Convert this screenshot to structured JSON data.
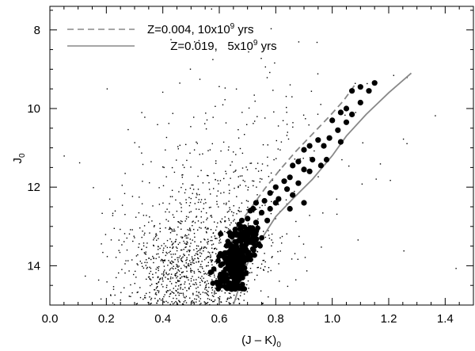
{
  "chart_data": {
    "type": "scatter",
    "title": "",
    "xlabel": "(J – K)",
    "xlabel_sub": "0",
    "ylabel": "J",
    "ylabel_sub": "0",
    "xlim": [
      0.0,
      1.5
    ],
    "ylim": [
      15.0,
      7.4
    ],
    "y_inverted": true,
    "grid": false,
    "xticks": [
      0.0,
      0.2,
      0.4,
      0.6,
      0.8,
      1.0,
      1.2,
      1.4
    ],
    "xtick_labels": [
      "0.0",
      "0.2",
      "0.4",
      "0.6",
      "0.8",
      "1.0",
      "1.2",
      "1.4"
    ],
    "yticks": [
      8,
      10,
      12,
      14
    ],
    "ytick_labels": [
      "8",
      "10",
      "12",
      "14"
    ],
    "legend_position": "top-left",
    "legend": [
      {
        "pre": "Z=0.004,  10x10",
        "sup": "9",
        "post": " yrs",
        "style": "dashed",
        "color": "#888888"
      },
      {
        "pre": "Z=0.019,   5x10",
        "sup": "9",
        "post": " yrs",
        "style": "solid",
        "color": "#888888"
      }
    ],
    "isochrones": [
      {
        "style": "dashed",
        "color": "#888888",
        "points": [
          [
            0.6,
            14.45
          ],
          [
            0.62,
            14.05
          ],
          [
            0.63,
            13.65
          ],
          [
            0.65,
            13.25
          ],
          [
            0.68,
            12.85
          ],
          [
            0.72,
            12.45
          ],
          [
            0.76,
            12.05
          ],
          [
            0.81,
            11.6
          ],
          [
            0.87,
            11.1
          ],
          [
            0.93,
            10.65
          ],
          [
            0.99,
            10.2
          ],
          [
            1.04,
            9.8
          ],
          [
            1.08,
            9.4
          ]
        ]
      },
      {
        "style": "solid",
        "color": "#888888",
        "points": [
          [
            0.65,
            15.0
          ],
          [
            0.67,
            14.55
          ],
          [
            0.69,
            14.1
          ],
          [
            0.72,
            13.65
          ],
          [
            0.76,
            13.2
          ],
          [
            0.8,
            12.75
          ],
          [
            0.86,
            12.3
          ],
          [
            0.93,
            11.8
          ],
          [
            1.0,
            11.2
          ],
          [
            1.05,
            10.7
          ],
          [
            1.12,
            10.15
          ],
          [
            1.2,
            9.6
          ],
          [
            1.28,
            9.1
          ]
        ]
      }
    ],
    "field_stars": {
      "seed": 20240517,
      "clusters": [
        {
          "n": 700,
          "cx": 0.47,
          "cy": 14.1,
          "sx": 0.11,
          "sy": 0.75
        },
        {
          "n": 350,
          "cx": 0.58,
          "cy": 13.0,
          "sx": 0.13,
          "sy": 1.0
        },
        {
          "n": 150,
          "cx": 0.68,
          "cy": 11.4,
          "sx": 0.17,
          "sy": 1.3
        },
        {
          "n": 90,
          "cx": 0.75,
          "cy": 11.5,
          "sx": 0.35,
          "sy": 2.0
        }
      ]
    },
    "members_dense": {
      "seed": 777,
      "n": 260,
      "j_range": [
        13.0,
        14.6
      ]
    },
    "members_rgb": [
      [
        1.15,
        9.35
      ],
      [
        1.13,
        9.55
      ],
      [
        1.1,
        9.45
      ],
      [
        1.07,
        9.55
      ],
      [
        1.1,
        9.85
      ],
      [
        1.05,
        10.0
      ],
      [
        1.03,
        10.1
      ],
      [
        1.07,
        10.15
      ],
      [
        1.05,
        10.35
      ],
      [
        1.0,
        10.3
      ],
      [
        1.02,
        10.55
      ],
      [
        0.99,
        10.75
      ],
      [
        1.03,
        10.85
      ],
      [
        0.97,
        10.95
      ],
      [
        0.95,
        10.8
      ],
      [
        0.92,
        10.95
      ],
      [
        0.9,
        11.05
      ],
      [
        0.93,
        11.3
      ],
      [
        0.96,
        11.45
      ],
      [
        0.98,
        11.3
      ],
      [
        0.88,
        11.35
      ],
      [
        0.9,
        11.55
      ],
      [
        0.86,
        11.45
      ],
      [
        0.85,
        11.75
      ],
      [
        0.92,
        11.6
      ],
      [
        0.88,
        11.9
      ],
      [
        0.84,
        12.05
      ],
      [
        0.83,
        11.85
      ],
      [
        0.8,
        12.0
      ],
      [
        0.78,
        12.15
      ],
      [
        0.81,
        12.3
      ],
      [
        0.76,
        12.35
      ],
      [
        0.73,
        12.4
      ],
      [
        0.72,
        12.55
      ],
      [
        0.75,
        12.65
      ],
      [
        0.78,
        12.55
      ],
      [
        0.7,
        12.8
      ],
      [
        0.73,
        12.9
      ],
      [
        0.68,
        12.85
      ],
      [
        0.71,
        12.6
      ],
      [
        0.86,
        12.2
      ],
      [
        0.8,
        12.4
      ],
      [
        0.77,
        12.85
      ],
      [
        0.67,
        12.95
      ],
      [
        0.9,
        12.4
      ],
      [
        0.85,
        12.55
      ]
    ]
  }
}
